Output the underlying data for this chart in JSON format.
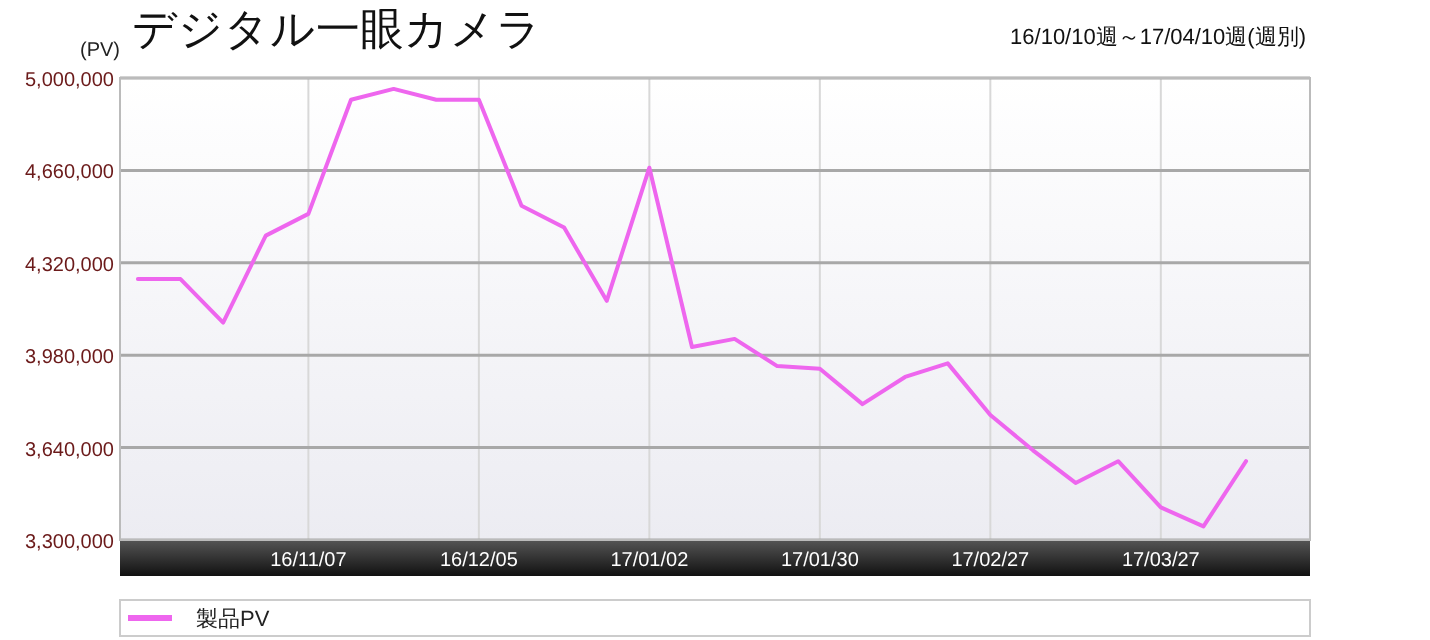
{
  "chart_data": {
    "type": "line",
    "title": "デジタル一眼カメラ",
    "subtitle": "16/10/10週～17/04/10週(週別)",
    "ylabel": "(PV)",
    "categories": [
      null,
      null,
      null,
      null,
      "16/11/07",
      null,
      null,
      null,
      "16/12/05",
      null,
      null,
      null,
      "17/01/02",
      null,
      null,
      null,
      "17/01/30",
      null,
      null,
      null,
      "17/02/27",
      null,
      null,
      null,
      "17/03/27",
      null,
      null
    ],
    "series": [
      {
        "name": "製品PV",
        "color": "#ee66ee",
        "values": [
          4260000,
          4260000,
          4100000,
          4420000,
          4500000,
          4920000,
          4960000,
          4920000,
          4920000,
          4530000,
          4450000,
          4180000,
          4670000,
          4010000,
          4040000,
          3940000,
          3930000,
          3800000,
          3900000,
          3950000,
          3760000,
          3630000,
          3510000,
          3590000,
          3420000,
          3350000,
          3590000
        ]
      }
    ],
    "ylim": [
      3300000,
      5000000
    ],
    "yticks": [
      {
        "value": 3300000,
        "label": "3,300,000"
      },
      {
        "value": 3640000,
        "label": "3,640,000"
      },
      {
        "value": 3980000,
        "label": "3,980,000"
      },
      {
        "value": 4320000,
        "label": "4,320,000"
      },
      {
        "value": 4660000,
        "label": "4,660,000"
      },
      {
        "value": 5000000,
        "label": "5,000,000"
      }
    ],
    "grid": true,
    "legend": "bottom",
    "marker": "none",
    "line_style": "solid"
  }
}
